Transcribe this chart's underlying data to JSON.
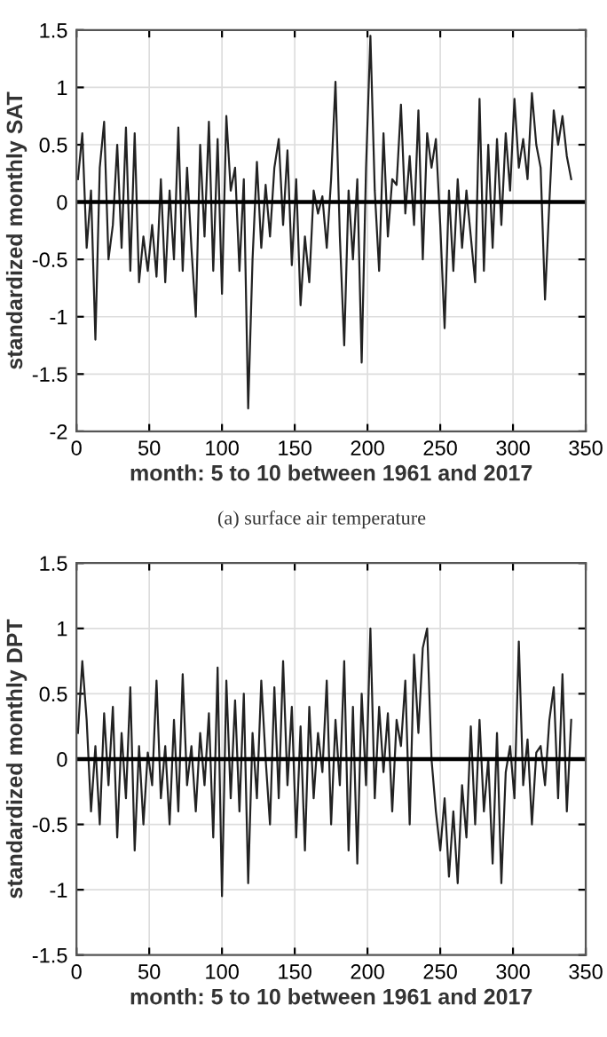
{
  "chart_data": [
    {
      "type": "line",
      "ylabel": "standardized monthly SAT",
      "xlabel": "month: 5 to 10 between 1961 and 2017",
      "annotations": [
        "(a) surface air temperature"
      ],
      "x": [
        1,
        4,
        7,
        10,
        13,
        16,
        19,
        22,
        25,
        28,
        31,
        34,
        37,
        40,
        43,
        46,
        49,
        52,
        55,
        58,
        61,
        64,
        67,
        70,
        73,
        76,
        79,
        82,
        85,
        88,
        91,
        94,
        97,
        100,
        103,
        106,
        109,
        112,
        115,
        118,
        121,
        124,
        127,
        130,
        133,
        136,
        139,
        142,
        145,
        148,
        151,
        154,
        157,
        160,
        163,
        166,
        169,
        172,
        175,
        178,
        181,
        184,
        187,
        190,
        193,
        196,
        199,
        202,
        205,
        208,
        211,
        214,
        217,
        220,
        223,
        226,
        229,
        232,
        235,
        238,
        241,
        244,
        247,
        250,
        253,
        256,
        259,
        262,
        265,
        268,
        271,
        274,
        277,
        280,
        283,
        286,
        289,
        292,
        295,
        298,
        301,
        304,
        307,
        310,
        313,
        316,
        319,
        322,
        325,
        328,
        331,
        334,
        337,
        340
      ],
      "series": [
        {
          "color": "#222222",
          "values": [
            0.2,
            0.6,
            -0.4,
            0.1,
            -1.2,
            0.3,
            0.7,
            -0.5,
            -0.2,
            0.5,
            -0.4,
            0.65,
            -0.6,
            0.6,
            -0.7,
            -0.3,
            -0.6,
            -0.2,
            -0.65,
            0.2,
            -0.7,
            0.1,
            -0.5,
            0.65,
            -0.6,
            0.3,
            -0.4,
            -1.0,
            0.5,
            -0.3,
            0.7,
            -0.6,
            0.55,
            -0.8,
            0.75,
            0.1,
            0.3,
            -0.6,
            0.2,
            -1.8,
            -0.5,
            0.35,
            -0.4,
            0.15,
            -0.3,
            0.3,
            0.55,
            -0.2,
            0.45,
            -0.55,
            0.2,
            -0.9,
            -0.3,
            -0.7,
            0.1,
            -0.1,
            0.05,
            -0.4,
            0.2,
            1.05,
            -0.3,
            -1.25,
            0.1,
            -0.5,
            0.2,
            -1.4,
            0.3,
            1.45,
            0.1,
            -0.6,
            0.6,
            -0.3,
            0.2,
            0.15,
            0.85,
            -0.1,
            0.4,
            -0.2,
            0.8,
            -0.5,
            0.6,
            0.3,
            0.55,
            -0.2,
            -1.1,
            0.1,
            -0.6,
            0.2,
            -0.4,
            0.1,
            -0.3,
            -0.7,
            0.9,
            -0.6,
            0.5,
            -0.4,
            0.55,
            -0.2,
            0.6,
            0.1,
            0.9,
            0.3,
            0.55,
            0.2,
            0.95,
            0.5,
            0.3,
            -0.85,
            0.0,
            0.8,
            0.5,
            0.75,
            0.4,
            0.2
          ]
        }
      ],
      "xlim": [
        0,
        350
      ],
      "xticks": [
        0,
        50,
        100,
        150,
        200,
        250,
        300,
        350
      ],
      "ylim": [
        -2,
        1.5
      ],
      "yticks": [
        -2,
        -1.5,
        -1,
        -0.5,
        0,
        0.5,
        1,
        1.5
      ],
      "grid": true,
      "ref_lines": [
        {
          "axis": "y",
          "value": 0,
          "color": "#000000"
        }
      ]
    },
    {
      "type": "line",
      "ylabel": "standardized monthly DPT",
      "xlabel": "month: 5 to 10 between 1961 and 2017",
      "x": [
        1,
        4,
        7,
        10,
        13,
        16,
        19,
        22,
        25,
        28,
        31,
        34,
        37,
        40,
        43,
        46,
        49,
        52,
        55,
        58,
        61,
        64,
        67,
        70,
        73,
        76,
        79,
        82,
        85,
        88,
        91,
        94,
        97,
        100,
        103,
        106,
        109,
        112,
        115,
        118,
        121,
        124,
        127,
        130,
        133,
        136,
        139,
        142,
        145,
        148,
        151,
        154,
        157,
        160,
        163,
        166,
        169,
        172,
        175,
        178,
        181,
        184,
        187,
        190,
        193,
        196,
        199,
        202,
        205,
        208,
        211,
        214,
        217,
        220,
        223,
        226,
        229,
        232,
        235,
        238,
        241,
        244,
        247,
        250,
        253,
        256,
        259,
        262,
        265,
        268,
        271,
        274,
        277,
        280,
        283,
        286,
        289,
        292,
        295,
        298,
        301,
        304,
        307,
        310,
        313,
        316,
        319,
        322,
        325,
        328,
        331,
        334,
        337,
        340
      ],
      "series": [
        {
          "color": "#222222",
          "values": [
            0.2,
            0.75,
            0.3,
            -0.4,
            0.1,
            -0.5,
            0.35,
            -0.2,
            0.4,
            -0.6,
            0.2,
            -0.3,
            0.55,
            -0.7,
            0.1,
            -0.5,
            0.05,
            -0.2,
            0.6,
            -0.3,
            0.1,
            -0.5,
            0.3,
            -0.4,
            0.65,
            -0.2,
            0.1,
            -0.4,
            0.2,
            -0.2,
            0.35,
            -0.6,
            0.7,
            -1.05,
            0.6,
            -0.3,
            0.45,
            -0.4,
            0.5,
            -0.95,
            0.2,
            -0.3,
            0.6,
            0.0,
            -0.5,
            0.55,
            -0.3,
            0.75,
            -0.2,
            0.4,
            -0.6,
            0.25,
            -0.7,
            0.4,
            -0.3,
            0.2,
            -0.1,
            0.6,
            -0.5,
            0.3,
            -0.2,
            0.75,
            -0.7,
            0.4,
            -0.8,
            0.5,
            -0.2,
            1.0,
            -0.3,
            0.4,
            -0.1,
            0.35,
            -0.4,
            0.3,
            0.1,
            0.6,
            -0.5,
            0.8,
            0.2,
            0.85,
            1.0,
            0.0,
            -0.4,
            -0.7,
            -0.3,
            -0.9,
            -0.4,
            -0.95,
            -0.2,
            -0.6,
            0.25,
            -0.5,
            0.3,
            -0.4,
            0.0,
            -0.8,
            0.2,
            -0.95,
            -0.1,
            0.1,
            -0.3,
            0.9,
            -0.2,
            0.15,
            -0.5,
            0.05,
            0.1,
            -0.2,
            0.3,
            0.55,
            -0.3,
            0.65,
            -0.4,
            0.3
          ]
        }
      ],
      "xlim": [
        0,
        350
      ],
      "xticks": [
        0,
        50,
        100,
        150,
        200,
        250,
        300,
        350
      ],
      "ylim": [
        -1.5,
        1.5
      ],
      "yticks": [
        -1.5,
        -1,
        -0.5,
        0,
        0.5,
        1,
        1.5
      ],
      "grid": true,
      "ref_lines": [
        {
          "axis": "y",
          "value": 0,
          "color": "#000000"
        }
      ]
    }
  ]
}
